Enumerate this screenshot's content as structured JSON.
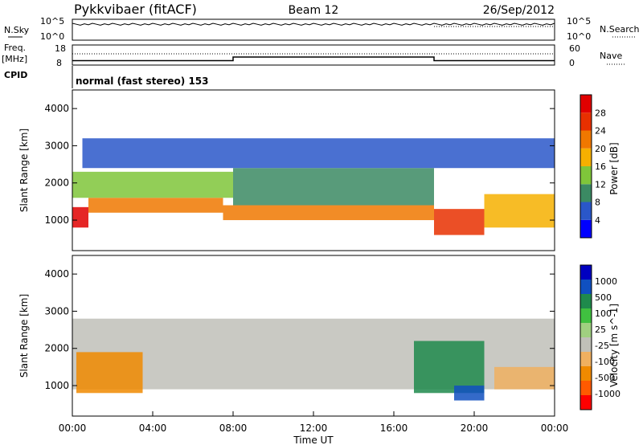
{
  "header": {
    "radar": "Pykkvibaer (fitACF)",
    "beam": "Beam 12",
    "date": "26/Sep/2012"
  },
  "noise_panel": {
    "left_label": "N.Sky",
    "right_label": "N.Search",
    "left_ticks": [
      "10^5",
      "10^0"
    ],
    "right_ticks": [
      "10^5",
      "10^0"
    ]
  },
  "freq_panel": {
    "left_label_1": "Freq.",
    "left_label_2": "[MHz]",
    "right_label": "Nave",
    "left_ticks": [
      "18",
      "8"
    ],
    "right_ticks": [
      "60",
      "0"
    ],
    "freq_steps_mhz": [
      {
        "t": 0,
        "v": 10.2
      },
      {
        "t": 8,
        "v": 12.0
      },
      {
        "t": 18,
        "v": 10.2
      },
      {
        "t": 24,
        "v": 10.2
      }
    ]
  },
  "cpid": {
    "label": "CPID",
    "mode": "normal (fast stereo) 153"
  },
  "chart_data": [
    {
      "type": "heatmap",
      "name": "power",
      "ylabel": "Slant Range [km]",
      "xlim": [
        0,
        24
      ],
      "ylim": [
        180,
        4500
      ],
      "yticks": [
        1000,
        2000,
        3000,
        4000
      ],
      "colorbar_label": "Power [dB]",
      "colorbar_ticks": [
        "28",
        "24",
        "20",
        "16",
        "12",
        "8",
        "4"
      ],
      "colorbar_colors": [
        "#0000ff",
        "#2a57c9",
        "#3b8a63",
        "#7fc63a",
        "#f6b000",
        "#f07800",
        "#e83000",
        "#e10000"
      ],
      "bands": [
        {
          "t0": 0,
          "t1": 0.8,
          "r0": 800,
          "r1": 1350,
          "c": "#e10000"
        },
        {
          "t0": 0.8,
          "t1": 7.5,
          "r0": 1200,
          "r1": 1600,
          "c": "#f07800"
        },
        {
          "t0": 7.5,
          "t1": 18,
          "r0": 1000,
          "r1": 1400,
          "c": "#f07800"
        },
        {
          "t0": 18,
          "t1": 20.5,
          "r0": 600,
          "r1": 1300,
          "c": "#e83000"
        },
        {
          "t0": 20.5,
          "t1": 24,
          "r0": 800,
          "r1": 1700,
          "c": "#f6b000"
        },
        {
          "t0": 0,
          "t1": 8,
          "r0": 1600,
          "r1": 2300,
          "c": "#7fc63a"
        },
        {
          "t0": 8,
          "t1": 18,
          "r0": 1400,
          "r1": 2400,
          "c": "#3b8a63"
        },
        {
          "t0": 0.5,
          "t1": 24,
          "r0": 2400,
          "r1": 3200,
          "c": "#2a57c9"
        }
      ]
    },
    {
      "type": "heatmap",
      "name": "velocity",
      "ylabel": "Slant Range [km]",
      "xlim": [
        0,
        24
      ],
      "ylim": [
        180,
        4500
      ],
      "yticks": [
        1000,
        2000,
        3000,
        4000
      ],
      "colorbar_label": "Velocity [m s^-1]",
      "colorbar_ticks": [
        "1000",
        "500",
        "100",
        "25",
        "-25",
        "-100",
        "-500",
        "-1000"
      ],
      "colorbar_colors": [
        "#ff0000",
        "#ff5a00",
        "#f08a00",
        "#f0b060",
        "#c0c0b8",
        "#a0d080",
        "#40c040",
        "#1f8a4c",
        "#1050c0",
        "#0000c0"
      ],
      "bands": [
        {
          "t0": 0,
          "t1": 24,
          "r0": 900,
          "r1": 2800,
          "c": "#c0c0b8"
        },
        {
          "t0": 0.2,
          "t1": 3.5,
          "r0": 800,
          "r1": 1900,
          "c": "#f08a00"
        },
        {
          "t0": 17,
          "t1": 20.5,
          "r0": 800,
          "r1": 2200,
          "c": "#1f8a4c"
        },
        {
          "t0": 19,
          "t1": 20.5,
          "r0": 600,
          "r1": 1000,
          "c": "#1050c0"
        },
        {
          "t0": 21,
          "t1": 24,
          "r0": 900,
          "r1": 1500,
          "c": "#f0b060"
        }
      ]
    }
  ],
  "xaxis": {
    "label": "Time UT",
    "ticks": [
      "00:00",
      "04:00",
      "08:00",
      "12:00",
      "16:00",
      "20:00",
      "00:00"
    ],
    "tick_hours": [
      0,
      4,
      8,
      12,
      16,
      20,
      24
    ]
  }
}
